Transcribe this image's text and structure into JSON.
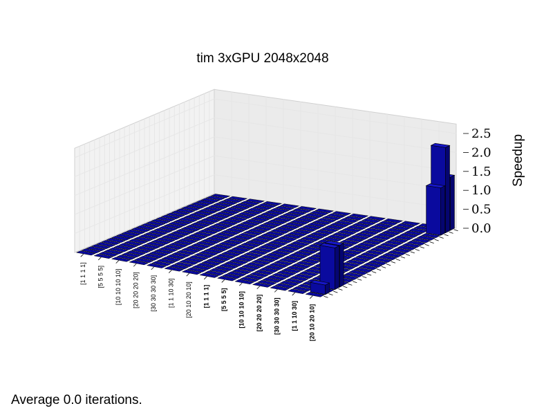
{
  "title": "tim 3xGPU 2048x2048",
  "footnote": "Average 0.0 iterations.",
  "colors": {
    "bar": "#0a0a9e",
    "bar_top": "#1616c8",
    "bar_side": "#050570",
    "pane": "#f2f2f2",
    "grid": "#e6e6e6"
  },
  "chart_data": {
    "type": "bar3d",
    "title": "tim 3xGPU 2048x2048",
    "zlabel": "Speedup",
    "zlim": [
      0,
      2.5
    ],
    "zticks": [
      "0.0",
      "0.5",
      "1.0",
      "1.5",
      "2.0",
      "2.5"
    ],
    "x_categories": [
      "[1 1 1 1]",
      "[5 5 5 5]",
      "[10 10 10 10]",
      "[20 20 20 20]",
      "[30 30 30 30]",
      "[1 1 10 30]",
      "[20 10 20 10]",
      "[1 1 1 1]",
      "[5 5 5 5]",
      "[10 10 10 10]",
      "[20 20 20 20]",
      "[30 30 30 30]",
      "[1 1 10 30]",
      "[20 10 20 10]"
    ],
    "x_bold_from": 7,
    "y_count": 28,
    "bars": [
      {
        "xi": 13,
        "yi": 1,
        "value": 0.25
      },
      {
        "xi": 13,
        "yi": 3,
        "value": 1.1
      },
      {
        "xi": 13,
        "yi": 4,
        "value": 1.1
      },
      {
        "xi": 13,
        "yi": 25,
        "value": 1.25
      },
      {
        "xi": 13,
        "yi": 26,
        "value": 2.25
      },
      {
        "xi": 13,
        "yi": 27,
        "value": 1.4
      }
    ]
  }
}
